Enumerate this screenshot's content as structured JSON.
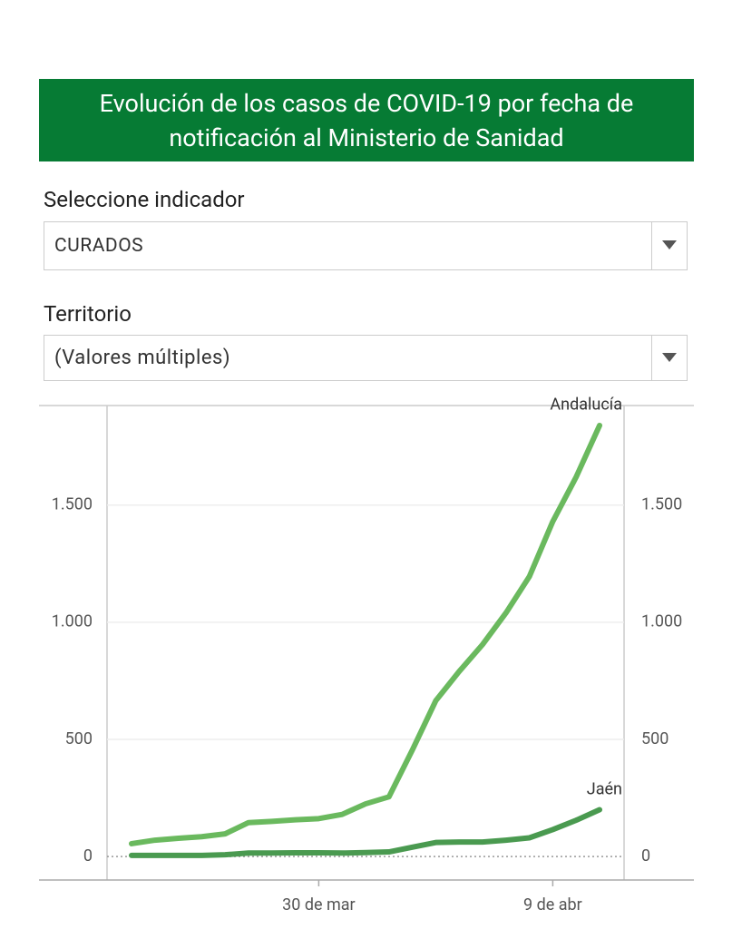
{
  "header": {
    "title": "Evolución de los casos de COVID-19 por fecha de notificación al Ministerio de Sanidad"
  },
  "filters": [
    {
      "label": "Seleccione indicador",
      "value": "CURADOS"
    },
    {
      "label": "Territorio",
      "value": "(Valores múltiples)"
    }
  ],
  "chart_data": {
    "type": "line",
    "categories": [
      null,
      null,
      null,
      null,
      null,
      null,
      null,
      null,
      "30 de mar",
      null,
      null,
      null,
      null,
      null,
      null,
      null,
      null,
      null,
      "9 de abr",
      null,
      null
    ],
    "series": [
      {
        "name": "Andalucía",
        "color": "#6ab95e",
        "values": [
          55,
          70,
          78,
          85,
          97,
          145,
          150,
          157,
          162,
          180,
          225,
          255,
          455,
          665,
          790,
          905,
          1040,
          1195,
          1430,
          1620,
          1840
        ]
      },
      {
        "name": "Jaén",
        "color": "#4a9a50",
        "values": [
          5,
          5,
          5,
          5,
          8,
          15,
          15,
          16,
          16,
          15,
          17,
          20,
          40,
          60,
          62,
          62,
          70,
          80,
          115,
          155,
          200
        ]
      }
    ],
    "ylim": [
      -100,
      1925
    ],
    "yticks": [
      0,
      500,
      {
        "value": 1000,
        "label": "1.000"
      },
      {
        "value": 1500,
        "label": "1.500"
      }
    ],
    "grid": true
  }
}
